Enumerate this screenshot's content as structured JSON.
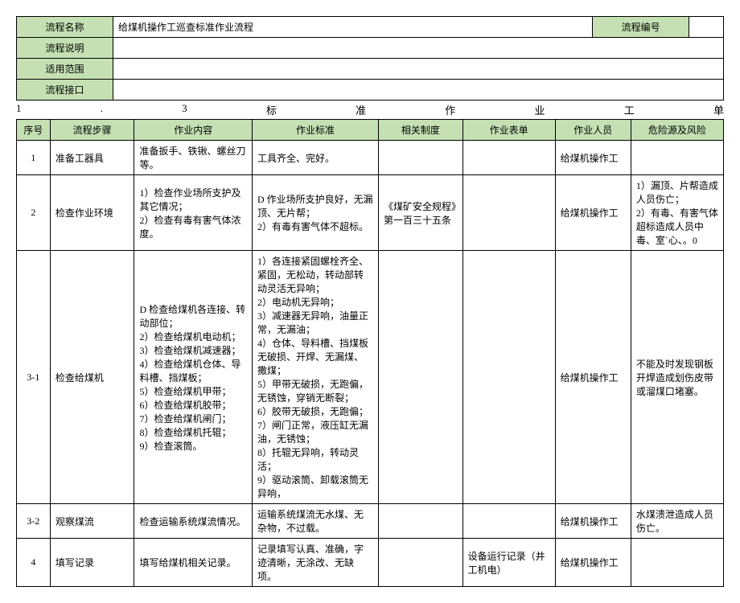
{
  "meta": {
    "label_process_name": "流程名称",
    "value_process_name": "给煤机操作工巡查标准作业流程",
    "label_process_code": "流程编号",
    "value_process_code": "",
    "label_process_desc": "流程说明",
    "value_process_desc": "",
    "label_scope": "适用范围",
    "value_scope": "",
    "label_interface": "流程接口",
    "value_interface": ""
  },
  "title": {
    "items": [
      "1",
      ".",
      "3",
      "标",
      "准",
      "作",
      "业",
      "工",
      "单"
    ]
  },
  "cols": {
    "seq": "序号",
    "step": "流程步骤",
    "content": "作业内容",
    "standard": "作业标准",
    "policy": "相关制度",
    "form": "作业表单",
    "person": "作业人员",
    "risk": "危险源及风险"
  },
  "rows": [
    {
      "seq": "1",
      "step": "准备工器具",
      "content": "准备扳手、铁锹、螺丝刀等。",
      "standard": "工具齐全、完好。",
      "policy": "",
      "form": "",
      "person": "给煤机操作工",
      "risk": ""
    },
    {
      "seq": "2",
      "step": "检查作业环境",
      "content": "1）检查作业场所支护及其它情况；\n2）检查有毒有害气体浓度。",
      "standard": "D 作业场所支护良好，无漏顶、无片帮；\n2）有毒有害气体不超标。",
      "policy": "《煤矿安全规程》第一百三十五条",
      "form": "",
      "person": "给煤机操作工",
      "risk": "1）漏顶、片帮造成人员伤亡；\n2）有毒、有害气体超标造成人员中毒、室`心、。0"
    },
    {
      "seq": "3-1",
      "step": "检查给煤机",
      "content": "D 检查给煤机各连接、转动部位；\n2）检查给煤机电动机；\n3）检查给煤机减速器；\n4）检查给煤机仓体、导料槽、挡煤板；\n5）检查给煤机甲带；\n6）检查给煤机胶带；\n7）检查给煤机闸门；\n8）检查给煤机托辊；\n9）检查滚筒。",
      "standard": "1）各连接紧固螺栓齐全、紧固，无松动，转动部转动灵活无异响；\n2）电动机无异响；\n3）减速器无异响，油量正常，无漏油；\n4）仓体、导料槽、挡煤板无破损、开焊、无漏煤、撒煤；\n5）甲带无破损，无跑偏，无锈蚀，穿销无断裂；\n6）胶带无破损，无跑偏；\n7）闸门正常，液压缸无漏油，无锈蚀；\n8）托辊无异响，转动灵活；\n9）驱动滚筒、卸载滚筒无异响，",
      "policy": "",
      "form": "",
      "person": "给煤机操作工",
      "risk": "不能及时发现钢板开焊造成划伤皮带或溜煤口堵塞。"
    },
    {
      "seq": "3-2",
      "step": "观察煤流",
      "content": "检查运输系统煤流情况。",
      "standard": "运输系统煤流无水煤、无杂物，不过载。",
      "policy": "",
      "form": "",
      "person": "给煤机操作工",
      "risk": "水煤溃泄造成人员伤亡。"
    },
    {
      "seq": "4",
      "step": "填写记录",
      "content": "填写给煤机相关记录。",
      "standard": "记录填写认真、准确，字迹清晰，无涂改、无缺项。",
      "policy": "",
      "form": "设备运行记录（井工机电）",
      "person": "给煤机操作工",
      "risk": ""
    }
  ]
}
